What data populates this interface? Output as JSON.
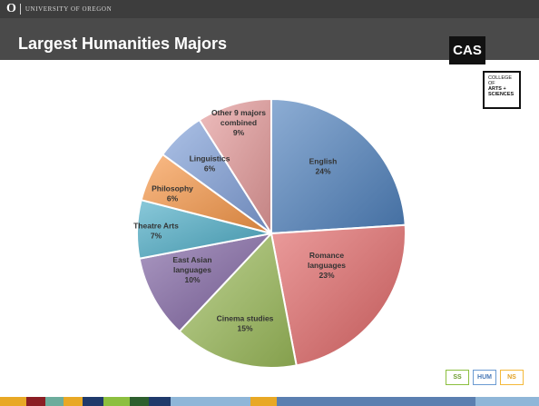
{
  "header": {
    "uo_mark": "O",
    "university_name": "UNIVERSITY OF OREGON"
  },
  "slide": {
    "title": "Largest Humanities Majors"
  },
  "logos": {
    "cas": "CAS",
    "college_lines": [
      "COLLEGE",
      "OF",
      "ARTS +",
      "SCIENCES"
    ]
  },
  "badges": [
    {
      "label": "SS"
    },
    {
      "label": "HUM"
    },
    {
      "label": "NS"
    }
  ],
  "chart_data": {
    "type": "pie",
    "title": "",
    "slices": [
      {
        "label_lines": [
          "English"
        ],
        "value": 24,
        "value_label": "24%",
        "color": "#4f81bd"
      },
      {
        "label_lines": [
          "Romance",
          "languages"
        ],
        "value": 23,
        "value_label": "23%",
        "color": "#e06666"
      },
      {
        "label_lines": [
          "Cinema studies"
        ],
        "value": 15,
        "value_label": "15%",
        "color": "#9bbb59"
      },
      {
        "label_lines": [
          "East Asian",
          "languages"
        ],
        "value": 10,
        "value_label": "10%",
        "color": "#8064a2"
      },
      {
        "label_lines": [
          "Theatre Arts"
        ],
        "value": 7,
        "value_label": "7%",
        "color": "#4bacc6"
      },
      {
        "label_lines": [
          "Philosophy"
        ],
        "value": 6,
        "value_label": "6%",
        "color": "#f79646"
      },
      {
        "label_lines": [
          "Linguistics"
        ],
        "value": 6,
        "value_label": "6%",
        "color": "#7f9fd9"
      },
      {
        "label_lines": [
          "Other 9 majors",
          "combined"
        ],
        "value": 9,
        "value_label": "9%",
        "color": "#e59a9a"
      }
    ]
  },
  "footer_colors": [
    "#e8a825",
    "#8b1e24",
    "#6cac9c",
    "#e8a825",
    "#1f3a6b",
    "#8cbf3f",
    "#2d5f2e",
    "#1f3a6b",
    "#8fb6d8",
    "#e8a825",
    "#5b7fb0",
    "#8fb6d8"
  ]
}
